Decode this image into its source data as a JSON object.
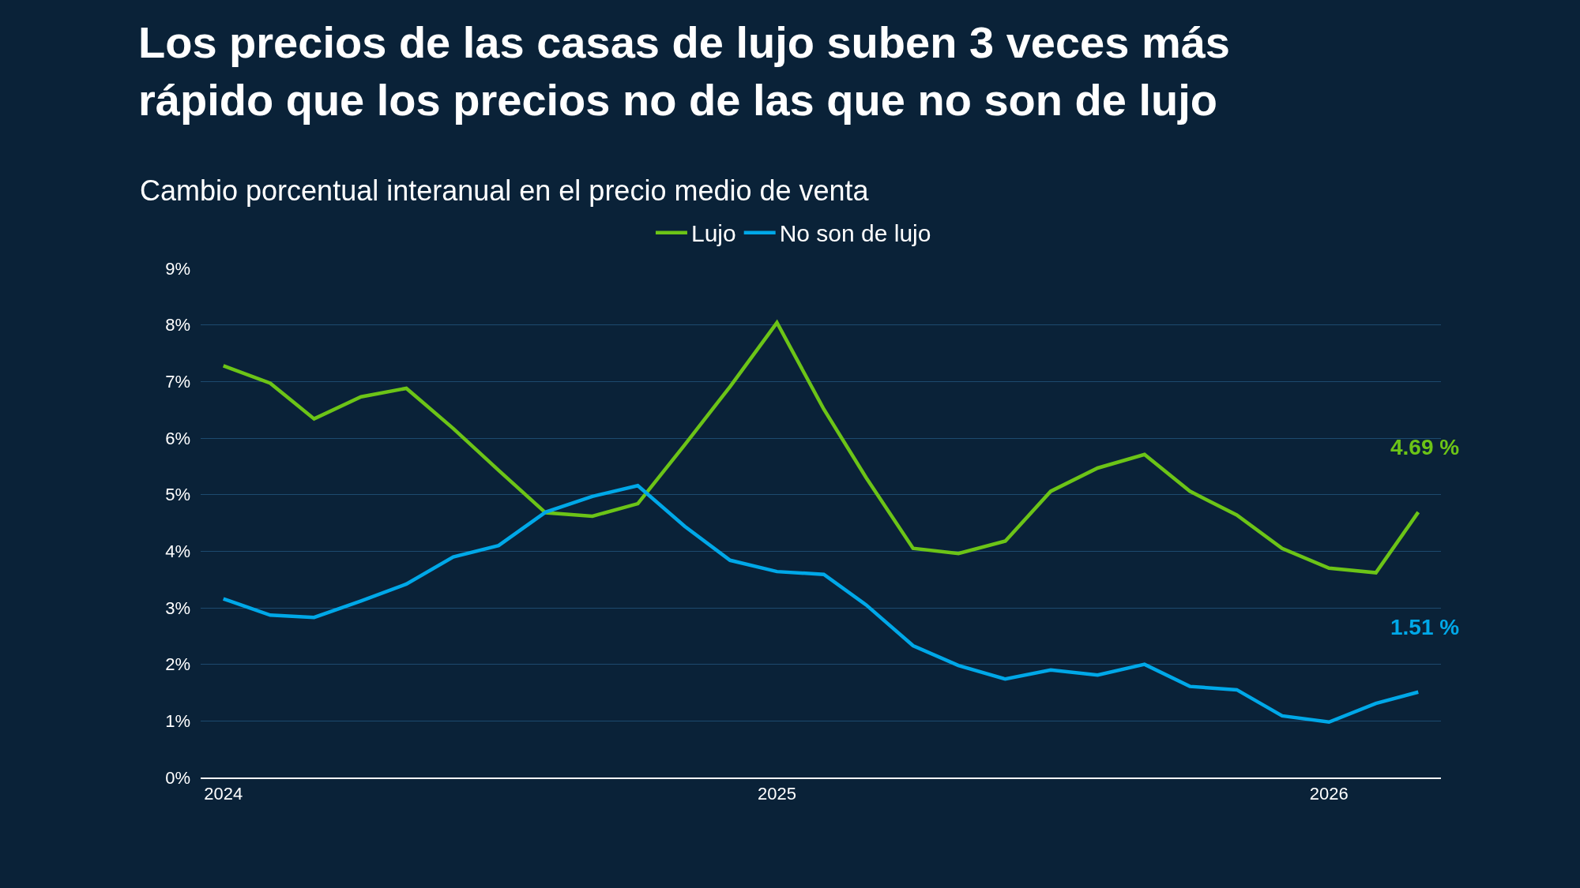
{
  "chart_data": {
    "type": "line",
    "title": "Los precios de las casas de lujo suben 3 veces más rápido que los precios no de las que no son de lujo",
    "subtitle": "Cambio porcentual interanual en el precio medio de venta",
    "x": [
      "2024-01",
      "2024-02",
      "2024-03",
      "2024-04",
      "2024-05",
      "2024-06",
      "2024-07",
      "2024-08",
      "2024-09",
      "2024-10",
      "2024-11",
      "2024-12",
      "2025-01",
      "2025-02",
      "2025-03",
      "2025-04",
      "2025-05",
      "2025-06",
      "2025-07",
      "2025-08",
      "2025-09",
      "2025-10",
      "2025-11",
      "2025-12",
      "2026-01",
      "2026-02",
      "2026-03"
    ],
    "series": [
      {
        "name": "Lujo",
        "color": "#6cc417",
        "values": [
          7.28,
          6.97,
          6.34,
          6.73,
          6.88,
          6.17,
          5.43,
          4.68,
          4.62,
          4.84,
          5.88,
          6.91,
          8.04,
          6.51,
          5.3,
          4.05,
          3.96,
          4.18,
          5.06,
          5.47,
          5.71,
          5.06,
          4.64,
          4.05,
          3.7,
          3.62,
          4.69
        ]
      },
      {
        "name": "No son de lujo",
        "color": "#00a8e8",
        "values": [
          3.16,
          2.87,
          2.83,
          3.12,
          3.42,
          3.9,
          4.1,
          4.69,
          4.97,
          5.16,
          4.44,
          3.84,
          3.64,
          3.59,
          3.05,
          2.33,
          1.98,
          1.74,
          1.9,
          1.81,
          2.0,
          1.61,
          1.55,
          1.09,
          0.98,
          1.31,
          1.51
        ]
      }
    ],
    "annotations": [
      {
        "text": "4.69 %",
        "x": "2026-03",
        "y": 4.69
      },
      {
        "text": "1.51 %",
        "x": "2026-03",
        "y": 1.51
      }
    ],
    "xlim": [
      "2023-12-17",
      "2026-03-16"
    ],
    "xticks": [
      {
        "value": "2024-01",
        "label": "2024"
      },
      {
        "value": "2025-01",
        "label": "2025"
      },
      {
        "value": "2026-01",
        "label": "2026"
      }
    ],
    "ylim": [
      0,
      9
    ],
    "yticks": [
      {
        "value": 0,
        "label": "0%"
      },
      {
        "value": 1,
        "label": "1%"
      },
      {
        "value": 2,
        "label": "2%"
      },
      {
        "value": 3,
        "label": "3%"
      },
      {
        "value": 4,
        "label": "4%"
      },
      {
        "value": 5,
        "label": "5%"
      },
      {
        "value": 6,
        "label": "6%"
      },
      {
        "value": 7,
        "label": "7%"
      },
      {
        "value": 8,
        "label": "8%"
      },
      {
        "value": 9,
        "label": "9%"
      }
    ],
    "grid": "y",
    "legend": "top",
    "marker": "none",
    "line_style": "solid"
  }
}
